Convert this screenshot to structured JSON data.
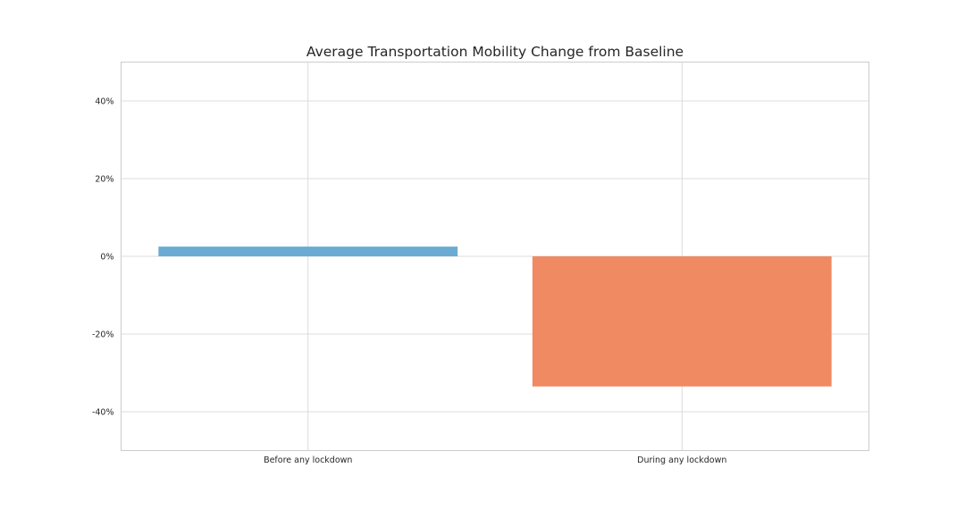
{
  "chart_data": {
    "type": "bar",
    "title": "Average Transportation Mobility Change from Baseline",
    "xlabel": "",
    "ylabel": "",
    "categories": [
      "Before any lockdown",
      "During any lockdown"
    ],
    "values": [
      2.5,
      -33.5
    ],
    "colors": [
      "#6aaad3",
      "#ef8a62"
    ],
    "ylim": [
      -50,
      50
    ],
    "yticks": [
      -40,
      -20,
      0,
      20,
      40
    ],
    "ytick_labels": [
      "-40%",
      "-20%",
      "0%",
      "20%",
      "40%"
    ],
    "grid": true
  }
}
